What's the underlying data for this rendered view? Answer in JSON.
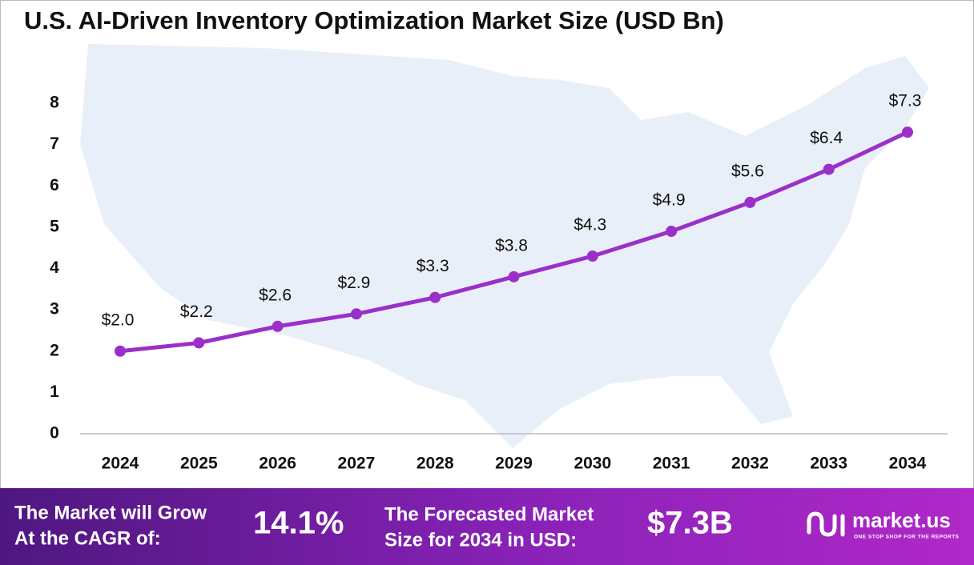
{
  "chart_data": {
    "type": "line",
    "title": "U.S. AI-Driven Inventory Optimization Market Size (USD Bn)",
    "categories": [
      "2024",
      "2025",
      "2026",
      "2027",
      "2028",
      "2029",
      "2030",
      "2031",
      "2032",
      "2033",
      "2034"
    ],
    "values": [
      2.0,
      2.2,
      2.6,
      2.9,
      3.3,
      3.8,
      4.3,
      4.9,
      5.6,
      6.4,
      7.3
    ],
    "value_labels": [
      "$2.0",
      "$2.2",
      "$2.6",
      "$2.9",
      "$3.3",
      "$3.8",
      "$4.3",
      "$4.9",
      "$5.6",
      "$6.4",
      "$7.3"
    ],
    "color": "#9b2fc9",
    "ylim": [
      0,
      8
    ],
    "yticks": [
      0,
      1,
      2,
      3,
      4,
      5,
      6,
      7,
      8
    ]
  },
  "footer": {
    "cagr_label": [
      "The Market will Grow",
      "At the CAGR of:"
    ],
    "cagr_value": "14.1%",
    "forecast_label": [
      "The Forecasted Market",
      "Size for 2034 in USD:"
    ],
    "forecast_value": "$7.3B",
    "brand": "market.us",
    "tagline": "ONE STOP SHOP FOR THE REPORTS"
  }
}
